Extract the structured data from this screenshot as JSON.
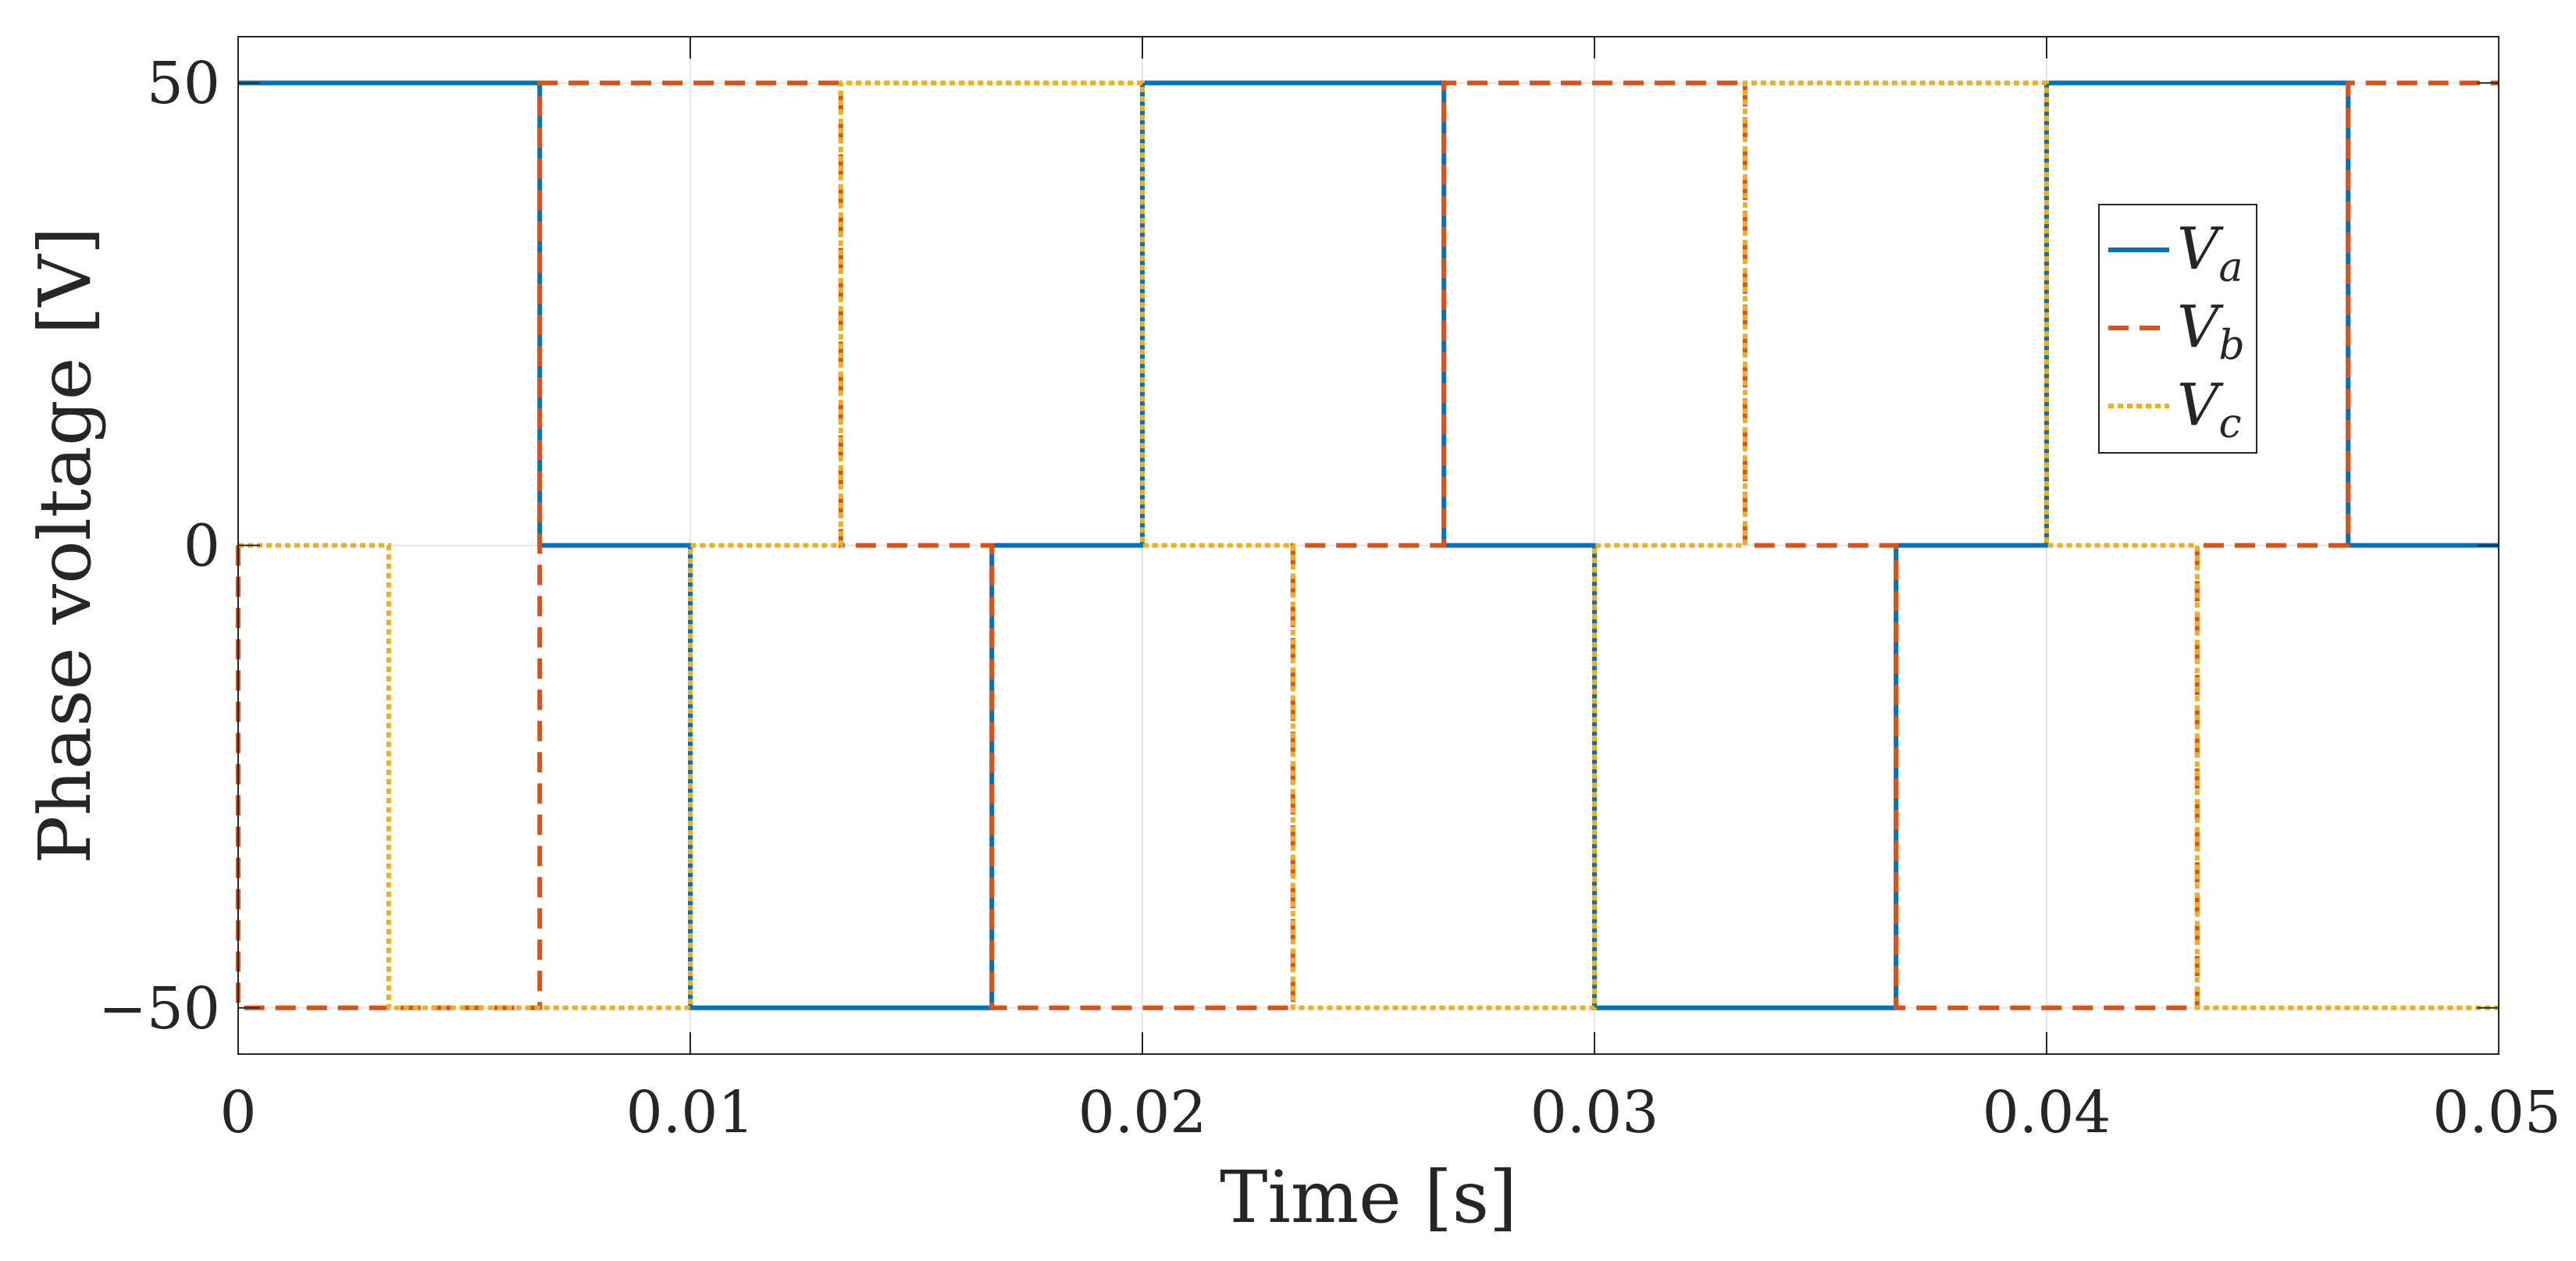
{
  "chart_data": {
    "type": "line",
    "xlabel": "Time [s]",
    "ylabel": "Phase voltage [V]",
    "xlim": [
      0,
      0.05
    ],
    "ylim": [
      -55,
      55
    ],
    "xticks": [
      0,
      0.01,
      0.02,
      0.03,
      0.04,
      0.05
    ],
    "xtick_labels": [
      "0",
      "0.01",
      "0.02",
      "0.03",
      "0.04",
      "0.05"
    ],
    "yticks": [
      -50,
      0,
      50
    ],
    "ytick_labels": [
      "−50",
      "0",
      "50"
    ],
    "grid": true,
    "legend_position": "right",
    "series": [
      {
        "name": "V",
        "subscript": "a",
        "color": "#0072BD",
        "style": "solid",
        "x": [
          0,
          0.00667,
          0.00667,
          0.01,
          0.01,
          0.01667,
          0.01667,
          0.02,
          0.02,
          0.02667,
          0.02667,
          0.03,
          0.03,
          0.03667,
          0.03667,
          0.04,
          0.04,
          0.04667,
          0.04667,
          0.05
        ],
        "y": [
          50,
          50,
          0,
          0,
          -50,
          -50,
          0,
          0,
          50,
          50,
          0,
          0,
          -50,
          -50,
          0,
          0,
          50,
          50,
          0,
          0
        ]
      },
      {
        "name": "V",
        "subscript": "b",
        "color": "#D95319",
        "style": "dashed",
        "x": [
          0,
          0,
          0.00667,
          0.00667,
          0.01333,
          0.01333,
          0.01667,
          0.01667,
          0.02333,
          0.02333,
          0.02667,
          0.02667,
          0.03333,
          0.03333,
          0.03667,
          0.03667,
          0.04333,
          0.04333,
          0.04667,
          0.04667,
          0.05
        ],
        "y": [
          0,
          -50,
          -50,
          50,
          50,
          0,
          0,
          -50,
          -50,
          0,
          0,
          50,
          50,
          0,
          0,
          -50,
          -50,
          0,
          0,
          50,
          50
        ]
      },
      {
        "name": "V",
        "subscript": "c",
        "color": "#EDB120",
        "style": "dotted",
        "x": [
          0,
          0.00333,
          0.00333,
          0.01,
          0.01,
          0.01333,
          0.01333,
          0.02,
          0.02,
          0.02333,
          0.02333,
          0.03,
          0.03,
          0.03333,
          0.03333,
          0.04,
          0.04,
          0.04333,
          0.04333,
          0.05
        ],
        "y": [
          0,
          0,
          -50,
          -50,
          0,
          0,
          50,
          50,
          0,
          0,
          -50,
          -50,
          0,
          0,
          50,
          50,
          0,
          0,
          -50,
          -50
        ]
      }
    ]
  }
}
